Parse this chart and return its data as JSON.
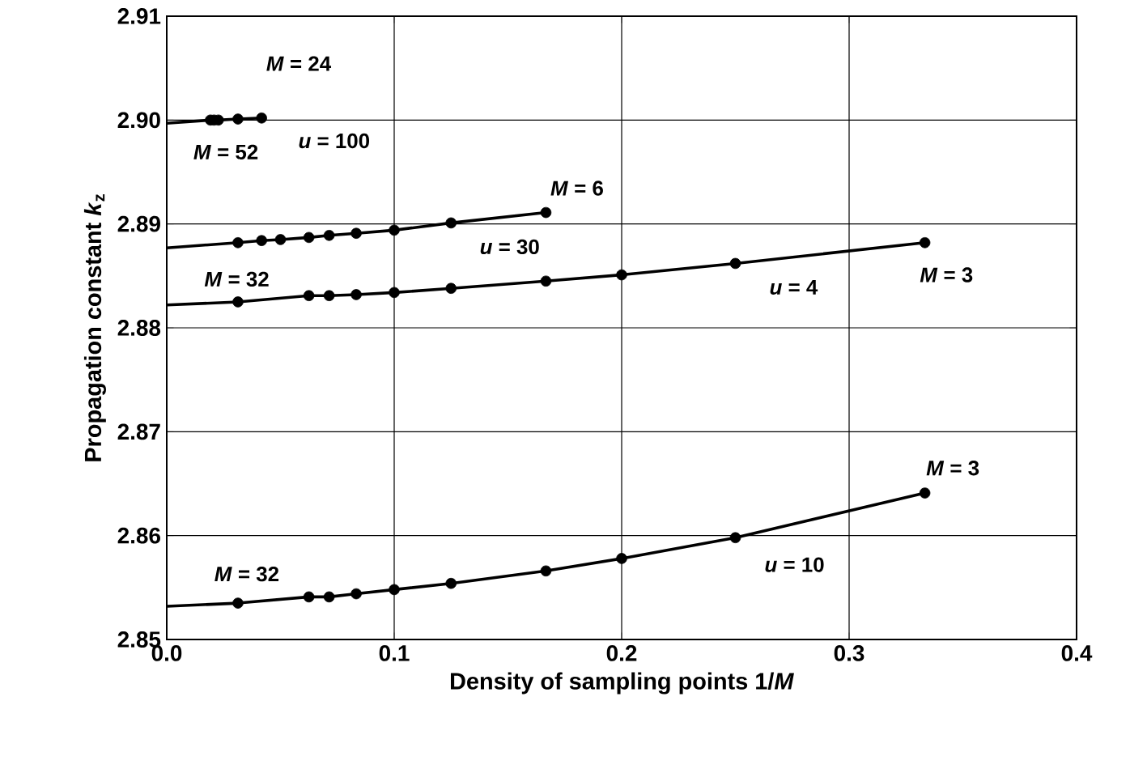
{
  "chart_data": {
    "type": "scatter",
    "xlabel": "Density of sampling points 1/*M*",
    "ylabel": "Propagation constant *k*$_{z}$",
    "xlim": [
      0,
      0.4
    ],
    "ylim": [
      2.85,
      2.91
    ],
    "xticks": [
      {
        "value": 0,
        "label": "0.0"
      },
      {
        "value": 0.1,
        "label": "0.1"
      },
      {
        "value": 0.2,
        "label": "0.2"
      },
      {
        "value": 0.3,
        "label": "0.3"
      },
      {
        "value": 0.4,
        "label": "0.4"
      }
    ],
    "yticks": [
      2.85,
      2.86,
      2.87,
      2.88,
      2.89,
      {
        "value": 2.9,
        "label": "2.90"
      },
      2.91
    ],
    "grid": true,
    "series": [
      {
        "type": "line",
        "marker": "none",
        "color": "#000000",
        "x": [
          0,
          0.0192,
          0.0208,
          0.0227,
          0.0313,
          0.0417
        ],
        "values": [
          2.8997,
          2.9,
          2.9,
          2.9,
          2.9001,
          2.9002
        ]
      },
      {
        "marker": "circle",
        "color": "#000000",
        "x": [
          0.0192,
          0.0208,
          0.0227,
          0.0313,
          0.0417
        ],
        "values": [
          2.9,
          2.9,
          2.9,
          2.9001,
          2.9002
        ]
      },
      {
        "type": "line",
        "marker": "none",
        "color": "#000000",
        "x": [
          0,
          0.0313,
          0.0417,
          0.05,
          0.0625,
          0.0714,
          0.0833,
          0.1,
          0.125,
          0.1667
        ],
        "values": [
          2.8877,
          2.8882,
          2.8884,
          2.8885,
          2.8887,
          2.8889,
          2.8891,
          2.8894,
          2.8901,
          2.8911
        ]
      },
      {
        "marker": "circle",
        "color": "#000000",
        "x": [
          0.0313,
          0.0417,
          0.05,
          0.0625,
          0.0714,
          0.0833,
          0.1,
          0.125,
          0.1667
        ],
        "values": [
          2.8882,
          2.8884,
          2.8885,
          2.8887,
          2.8889,
          2.8891,
          2.8894,
          2.8901,
          2.8911
        ]
      },
      {
        "type": "line",
        "marker": "none",
        "color": "#000000",
        "x": [
          0,
          0.0313,
          0.0625,
          0.0714,
          0.0833,
          0.1,
          0.125,
          0.1667,
          0.2,
          0.25,
          0.3333
        ],
        "values": [
          2.8822,
          2.8825,
          2.8831,
          2.8831,
          2.8832,
          2.8834,
          2.8838,
          2.8845,
          2.8851,
          2.8862,
          2.8882
        ]
      },
      {
        "marker": "circle",
        "color": "#000000",
        "x": [
          0.0313,
          0.0625,
          0.0714,
          0.0833,
          0.1,
          0.125,
          0.1667,
          0.2,
          0.25,
          0.3333
        ],
        "values": [
          2.8825,
          2.8831,
          2.8831,
          2.8832,
          2.8834,
          2.8838,
          2.8845,
          2.8851,
          2.8862,
          2.8882
        ]
      },
      {
        "type": "line",
        "marker": "none",
        "color": "#000000",
        "x": [
          0,
          0.0313,
          0.0625,
          0.0714,
          0.0833,
          0.1,
          0.125,
          0.1667,
          0.2,
          0.25,
          0.3333
        ],
        "values": [
          2.8532,
          2.8535,
          2.8541,
          2.8541,
          2.8544,
          2.8548,
          2.8554,
          2.8566,
          2.8578,
          2.8598,
          2.8641
        ]
      },
      {
        "marker": "circle",
        "color": "#000000",
        "x": [
          0.0313,
          0.0625,
          0.0714,
          0.0833,
          0.1,
          0.125,
          0.1667,
          0.2,
          0.25,
          0.3333
        ],
        "values": [
          2.8535,
          2.8541,
          2.8541,
          2.8544,
          2.8548,
          2.8554,
          2.8566,
          2.8578,
          2.8598,
          2.8641
        ]
      }
    ],
    "annotations": [
      "*M* = 24",
      "*M* = 52",
      "*u* = 100",
      "*M* = 6",
      "*u* = 30",
      "*M* = 32",
      "*u* = 4",
      "*M* = 3",
      "*M* = 3",
      "*u* = 10",
      "*M* = 32"
    ]
  }
}
